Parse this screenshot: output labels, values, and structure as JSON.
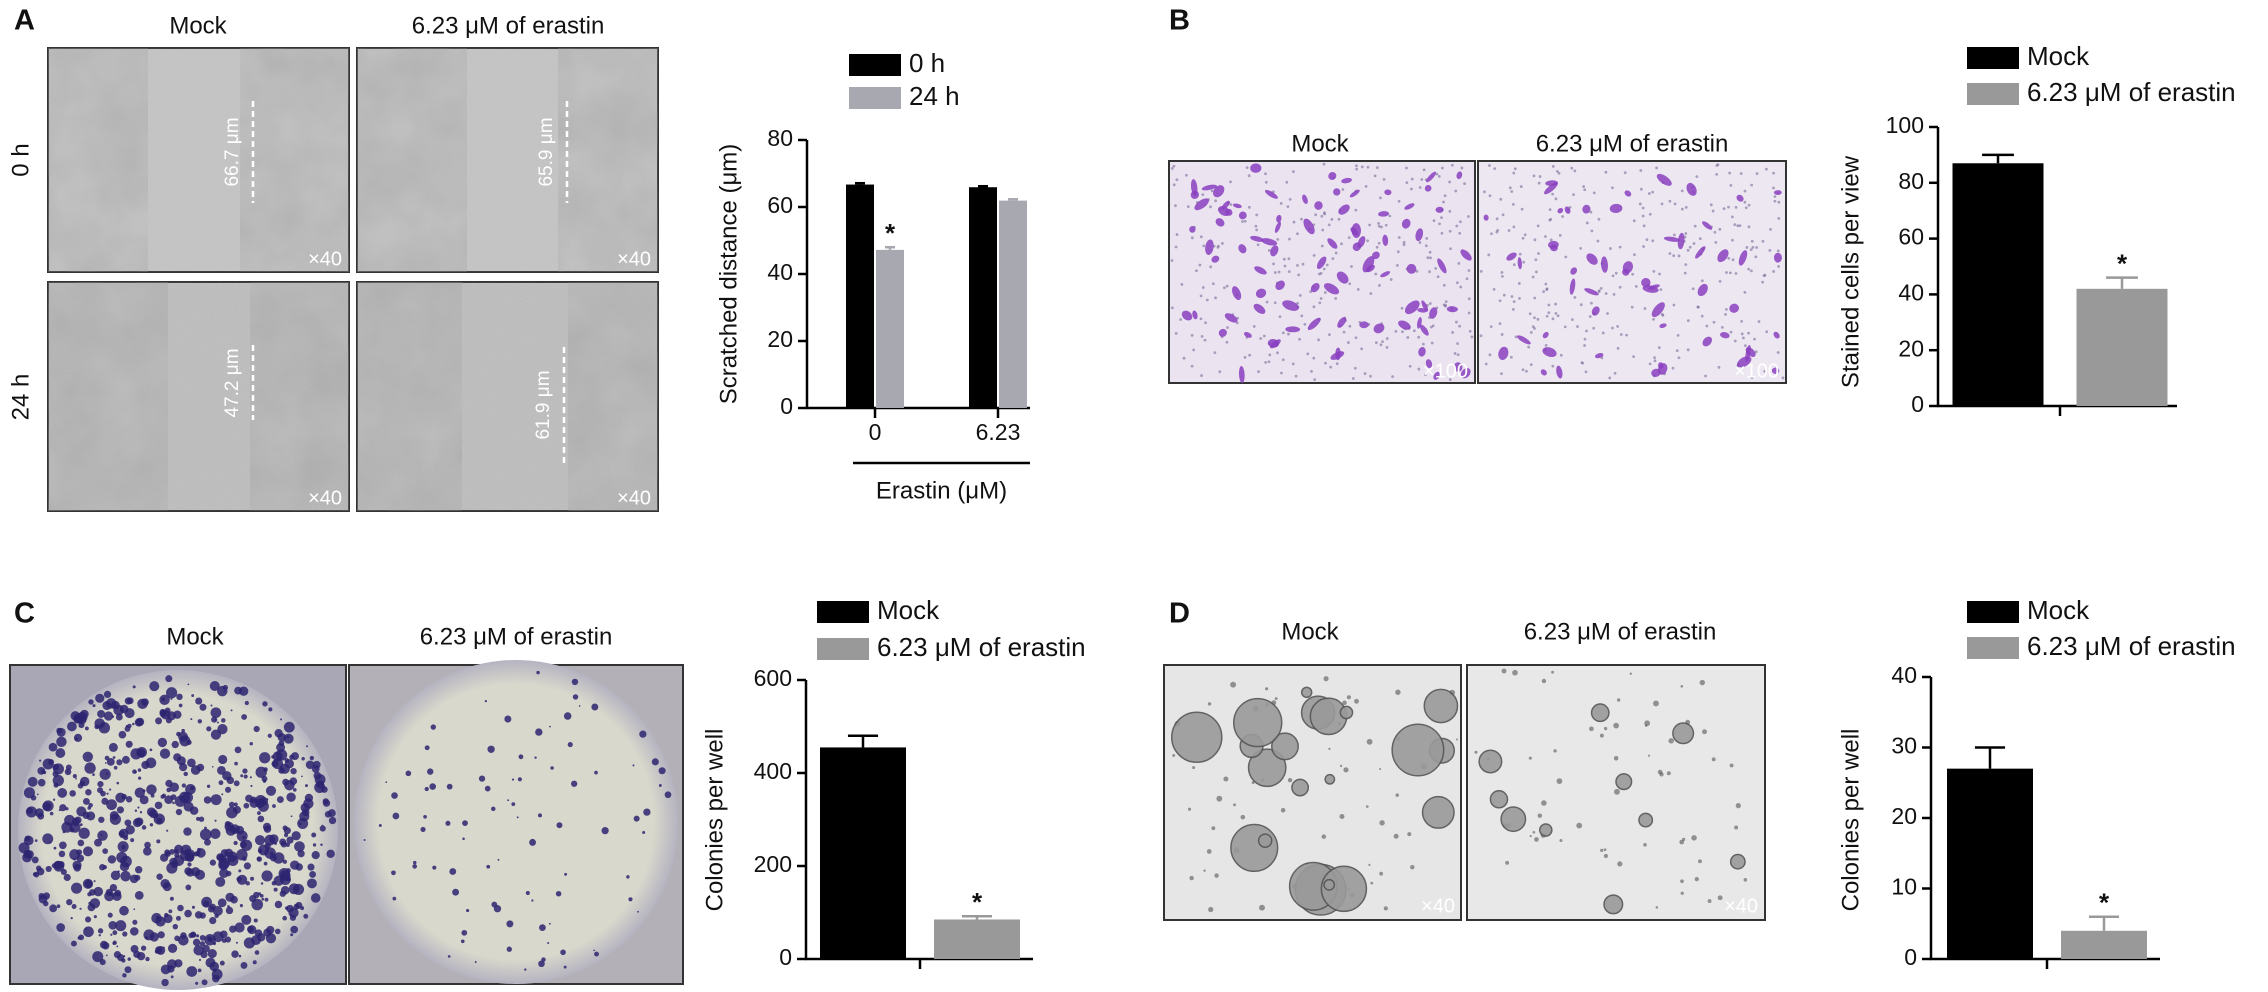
{
  "panels": [
    {
      "letter": "A",
      "columns": [
        "Mock",
        "6.23 μM of erastin"
      ],
      "rows": [
        "0 h",
        "24 h"
      ],
      "measurements": [
        "66.7 μm",
        "65.9 μm",
        "47.2 μm",
        "61.9 μm"
      ],
      "magnification": "×40"
    },
    {
      "letter": "B",
      "columns": [
        "Mock",
        "6.23 μM of erastin"
      ],
      "magnification": "×100"
    },
    {
      "letter": "C",
      "columns": [
        "Mock",
        "6.23 μM of erastin"
      ]
    },
    {
      "letter": "D",
      "columns": [
        "Mock",
        "6.23 μM of erastin"
      ],
      "magnification": "×40"
    }
  ],
  "chart_data": [
    {
      "type": "bar",
      "ylabel": "Scratched distance (μm)",
      "xlabel": "Erastin (μM)",
      "categories": [
        "0",
        "6.23"
      ],
      "series": [
        {
          "name": "0 h",
          "color": "#000000",
          "values": [
            66.7,
            65.9
          ],
          "errors": [
            0.4,
            0.3
          ]
        },
        {
          "name": "24 h",
          "color": "#a8a8b0",
          "values": [
            47.2,
            61.9
          ],
          "errors": [
            0.8,
            0.4
          ]
        }
      ],
      "ylim": [
        0,
        80
      ],
      "yticks": [
        0,
        20,
        40,
        60,
        80
      ],
      "annotation": "*"
    },
    {
      "type": "bar",
      "ylabel": "Stained cells per view",
      "categories": [
        null
      ],
      "series": [
        {
          "name": "Mock",
          "color": "#000000",
          "values": [
            87
          ],
          "errors": [
            3
          ]
        },
        {
          "name": "6.23 μM of erastin",
          "color": "#999999",
          "values": [
            42
          ],
          "errors": [
            4
          ]
        }
      ],
      "ylim": [
        0,
        100
      ],
      "yticks": [
        0,
        20,
        40,
        60,
        80,
        100
      ],
      "annotation": "*"
    },
    {
      "type": "bar",
      "ylabel": "Colonies per well",
      "categories": [
        null
      ],
      "series": [
        {
          "name": "Mock",
          "color": "#000000",
          "values": [
            455
          ],
          "errors": [
            25
          ]
        },
        {
          "name": "6.23 μM of erastin",
          "color": "#999999",
          "values": [
            85
          ],
          "errors": [
            7
          ]
        }
      ],
      "ylim": [
        0,
        600
      ],
      "yticks": [
        0,
        200,
        400,
        600
      ],
      "annotation": "*"
    },
    {
      "type": "bar",
      "ylabel": "Colonies per well",
      "categories": [
        null
      ],
      "series": [
        {
          "name": "Mock",
          "color": "#000000",
          "values": [
            27
          ],
          "errors": [
            3
          ]
        },
        {
          "name": "6.23 μM of erastin",
          "color": "#999999",
          "values": [
            4
          ],
          "errors": [
            2
          ]
        }
      ],
      "ylim": [
        0,
        40
      ],
      "yticks": [
        0,
        10,
        20,
        30,
        40
      ],
      "annotation": "*"
    }
  ]
}
